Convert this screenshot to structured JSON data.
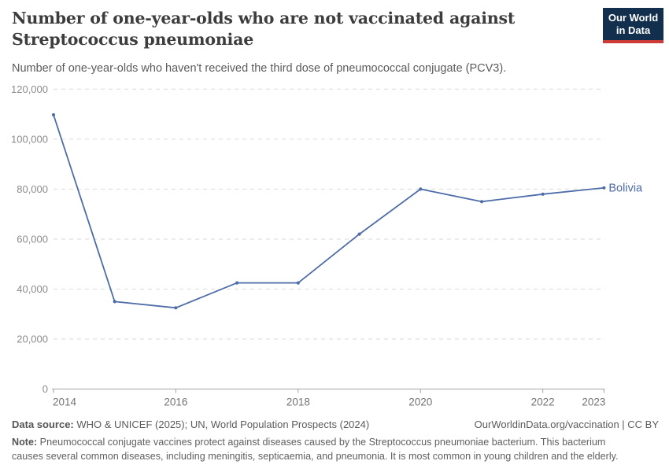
{
  "header": {
    "title": "Number of one-year-olds who are not vaccinated against Streptococcus pneumoniae",
    "subtitle": "Number of one-year-olds who haven't received the third dose of pneumococcal conjugate (PCV3).",
    "logo": {
      "line1": "Our World",
      "line2": "in Data",
      "bg_color": "#12304e",
      "accent_color": "#cb3b37"
    }
  },
  "chart_data": {
    "type": "line",
    "title": "Number of one-year-olds who are not vaccinated against Streptococcus pneumoniae",
    "xlabel": "",
    "ylabel": "",
    "xlim": [
      2014,
      2023
    ],
    "ylim": [
      0,
      120000
    ],
    "grid": "horizontal-dashed",
    "legend_position": "end-of-line-label",
    "x_ticks": [
      2014,
      2016,
      2018,
      2020,
      2022,
      2023
    ],
    "y_ticks": [
      0,
      20000,
      40000,
      60000,
      80000,
      100000,
      120000
    ],
    "y_tick_labels": [
      "0",
      "20,000",
      "40,000",
      "60,000",
      "80,000",
      "100,000",
      "120,000"
    ],
    "series": [
      {
        "name": "Bolivia",
        "color": "#4d6ca8",
        "x": [
          2014,
          2015,
          2016,
          2017,
          2018,
          2019,
          2020,
          2021,
          2022,
          2023
        ],
        "values": [
          109700,
          35000,
          32500,
          42500,
          42500,
          62000,
          80000,
          75000,
          78000,
          80500
        ]
      }
    ],
    "colors": {
      "gridline": "#dadada",
      "axis": "#a3a3a3",
      "y_tick_label": "#8c8c8c",
      "x_tick_label": "#737373"
    }
  },
  "footer": {
    "data_source_label": "Data source:",
    "data_source_text": " WHO & UNICEF (2025); UN, World Population Prospects (2024)",
    "link_text": "OurWorldinData.org/vaccination | CC BY",
    "note_label": "Note:",
    "note_text": " Pneumococcal conjugate vaccines protect against diseases caused by the Streptococcus pneumoniae bacterium. This bacterium causes several common diseases, including meningitis, septicaemia, and pneumonia. It is most common in young children and the elderly."
  }
}
